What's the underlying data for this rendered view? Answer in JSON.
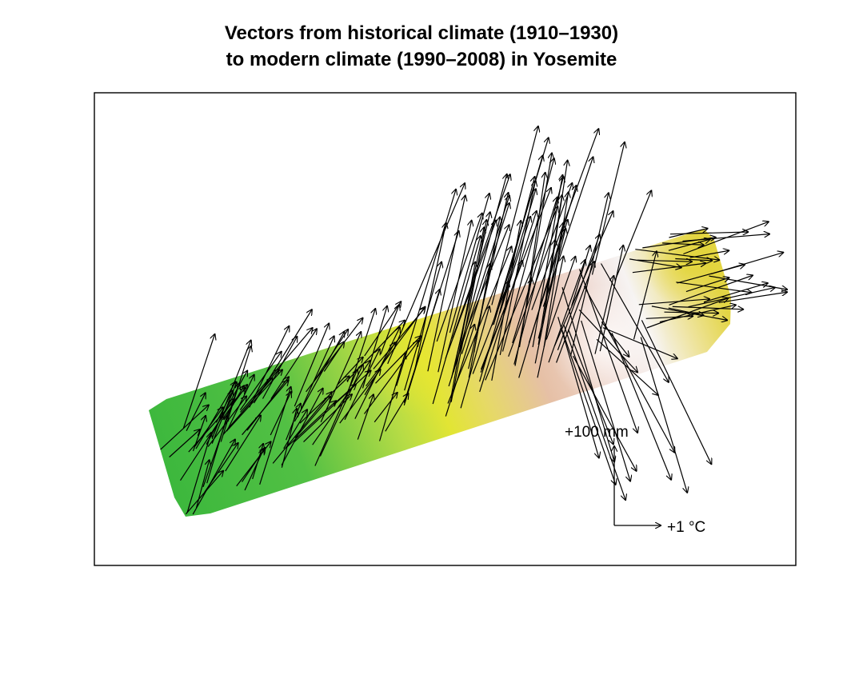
{
  "title": {
    "line1": "Vectors from historical climate (1910–1930)",
    "line2": "to modern climate (1990–2008) in Yosemite"
  },
  "legend": {
    "precipitation_label": "+100 mm",
    "temperature_label": "+1 °C"
  },
  "colors": {
    "low_elevation": "#3db83d",
    "mid_elevation": "#e2e534",
    "high_elevation": "#e6bca8",
    "peak": "#f6f3f2",
    "arrow": "#000000",
    "frame": "#000000"
  }
}
